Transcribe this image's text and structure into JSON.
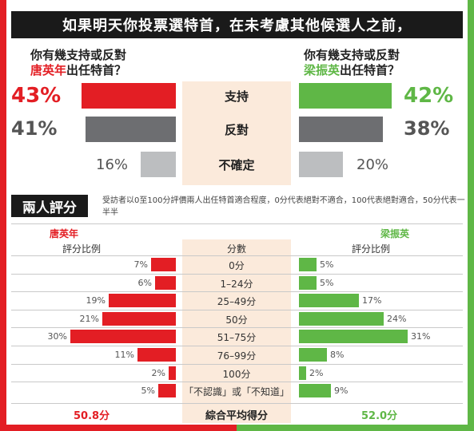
{
  "title": "如果明天你投票選特首，在未考慮其他候選人之前，",
  "question": {
    "left_line1": "你有幾支持或反對",
    "left_name": "唐英年",
    "left_suffix": "出任特首？",
    "right_line1": "你有幾支持或反對",
    "right_name": "梁振英",
    "right_suffix": "出任特首？"
  },
  "colors": {
    "red": "#e31e24",
    "dark_gray": "#6d6e71",
    "light_gray": "#bcbec0",
    "green": "#5fb746",
    "center": "#fbeadb"
  },
  "support_poll": {
    "categories": [
      "支持",
      "反對",
      "不確定"
    ],
    "left": [
      {
        "label": "43%",
        "value": 43,
        "color": "red"
      },
      {
        "label": "41%",
        "value": 41,
        "color": "dark_gray"
      },
      {
        "label": "16%",
        "value": 16,
        "color": "light_gray"
      }
    ],
    "right": [
      {
        "label": "42%",
        "value": 42,
        "color": "green"
      },
      {
        "label": "38%",
        "value": 38,
        "color": "dark_gray"
      },
      {
        "label": "20%",
        "value": 20,
        "color": "light_gray"
      }
    ]
  },
  "rating": {
    "section_title": "兩人評分",
    "note": "受訪者以0至100分評價兩人出任特首適合程度，0分代表絕對不適合，100代表絕對適合，50分代表一半半",
    "left_name": "唐英年",
    "right_name": "梁振英",
    "col_left": "評分比例",
    "col_center": "分數",
    "col_right": "評分比例",
    "avg_label": "綜合平均得分",
    "left_avg": "50.8分",
    "right_avg": "52.0分"
  },
  "chart_data": {
    "type": "bar",
    "categories": [
      "0分",
      "1–24分",
      "25–49分",
      "50分",
      "51–75分",
      "76–99分",
      "100分",
      "「不認識」或「不知道」"
    ],
    "series": [
      {
        "name": "唐英年",
        "values": [
          7,
          6,
          19,
          21,
          30,
          11,
          2,
          5
        ],
        "labels": [
          "7%",
          "6%",
          "19%",
          "21%",
          "30%",
          "11%",
          "2%",
          "5%"
        ]
      },
      {
        "name": "梁振英",
        "values": [
          5,
          5,
          17,
          24,
          31,
          8,
          2,
          9
        ],
        "labels": [
          "5%",
          "5%",
          "17%",
          "24%",
          "31%",
          "8%",
          "2%",
          "9%"
        ]
      }
    ]
  }
}
